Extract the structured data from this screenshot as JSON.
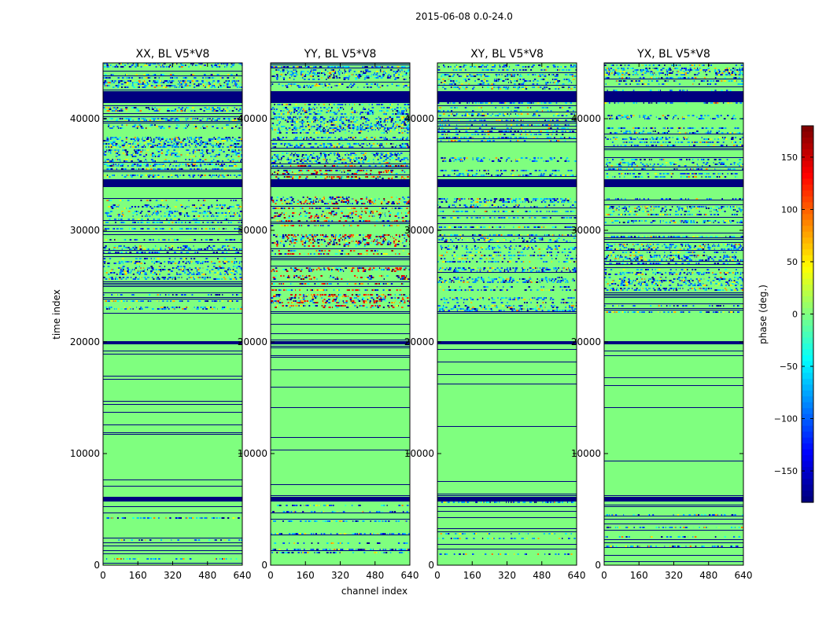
{
  "figure": {
    "suptitle": "2015-06-08 0.0-24.0"
  },
  "chart_data": {
    "type": "heatmap",
    "title": "2015-06-08 0.0-24.0",
    "xlabel": "channel index",
    "ylabel": "time index",
    "xlim": [
      0,
      640
    ],
    "ylim": [
      0,
      45000
    ],
    "xticks": [
      "0",
      "160",
      "320",
      "480",
      "640"
    ],
    "yticks": [
      "0",
      "10000",
      "20000",
      "30000",
      "40000"
    ],
    "panels": [
      {
        "title": "XX, BL V5*V8"
      },
      {
        "title": "YY, BL V5*V8"
      },
      {
        "title": "XY, BL V5*V8"
      },
      {
        "title": "YX, BL V5*V8"
      }
    ],
    "colorbar": {
      "label": "phase (deg.)",
      "range": [
        -180,
        180
      ],
      "ticks": [
        "150",
        "100",
        "50",
        "0",
        "−50",
        "−100",
        "−150"
      ],
      "tick_values": [
        150,
        100,
        50,
        0,
        -50,
        -100,
        -150
      ],
      "colormap": "jet"
    },
    "row_patterns": {
      "uniform_bands": [
        {
          "y": [
            16100,
            22500
          ],
          "phase": 0
        },
        {
          "y": [
            6400,
            15900
          ],
          "phase": 0
        },
        {
          "y": [
            33300,
            34600
          ],
          "phase": 0
        }
      ],
      "dark_bands": [
        {
          "y": [
            34000,
            34600
          ],
          "phase": -180
        },
        {
          "y": [
            41500,
            42500
          ],
          "phase": -180
        },
        {
          "y": [
            19900,
            20100
          ],
          "phase": -180
        },
        {
          "y": [
            5800,
            6200
          ],
          "phase": -180
        }
      ]
    }
  },
  "colors": {
    "background": "#7fff7f",
    "dark_line": "#00007f",
    "frame": "#000000"
  }
}
